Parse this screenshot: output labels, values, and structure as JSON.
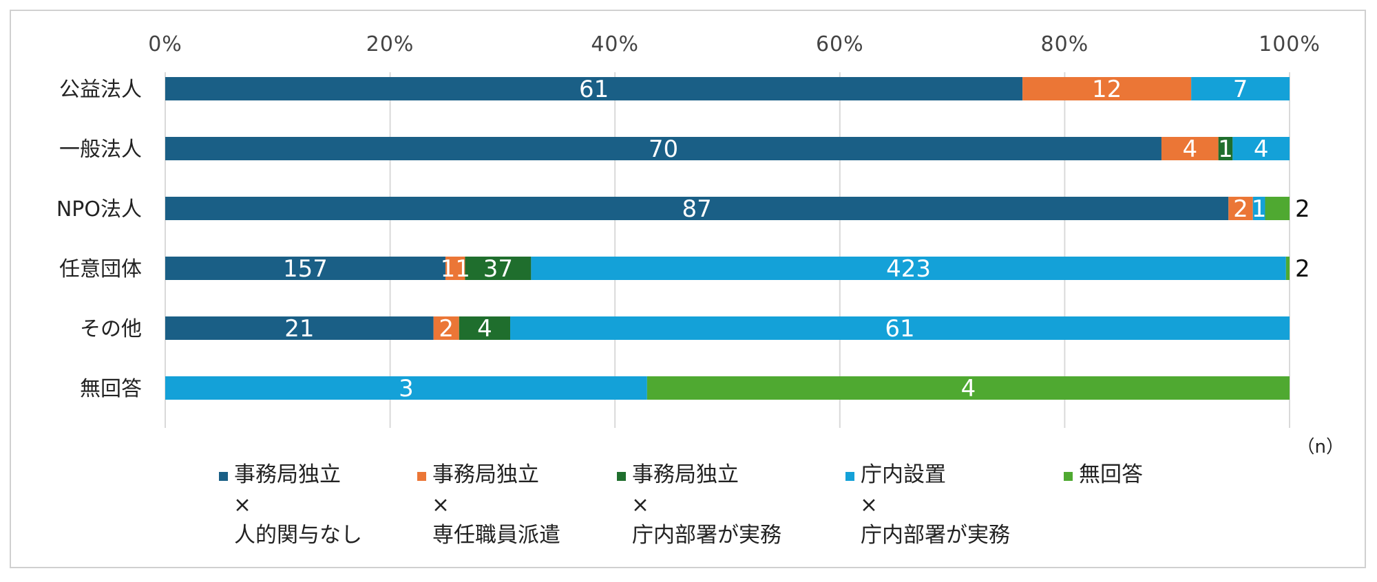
{
  "chart_data": {
    "type": "bar",
    "orientation": "horizontal",
    "stacked": "percent",
    "x_ticks": [
      "0%",
      "20%",
      "40%",
      "60%",
      "80%",
      "100%"
    ],
    "xlim": [
      0,
      100
    ],
    "grid": true,
    "unit_label": "（n）",
    "categories": [
      "公益法人",
      "一般法人",
      "NPO法人",
      "任意団体",
      "その他",
      "無回答"
    ],
    "series": [
      {
        "name_lines": [
          "事務局独立",
          "×",
          "人的関与なし"
        ],
        "color": "#1a5f86",
        "values": [
          61,
          70,
          87,
          157,
          21,
          0
        ]
      },
      {
        "name_lines": [
          "事務局独立",
          "×",
          "専任職員派遣"
        ],
        "color": "#eb7636",
        "values": [
          12,
          4,
          2,
          11,
          2,
          0
        ]
      },
      {
        "name_lines": [
          "事務局独立",
          "×",
          "庁内部署が実務"
        ],
        "color": "#1f6e2d",
        "values": [
          0,
          1,
          0,
          37,
          4,
          0
        ]
      },
      {
        "name_lines": [
          "庁内設置",
          "×",
          "庁内部署が実務"
        ],
        "color": "#14a1d8",
        "values": [
          7,
          4,
          1,
          423,
          61,
          3
        ]
      },
      {
        "name_lines": [
          "無回答"
        ],
        "color": "#4fa931",
        "values": [
          0,
          0,
          2,
          2,
          0,
          4
        ]
      }
    ],
    "legend_position": "bottom"
  }
}
